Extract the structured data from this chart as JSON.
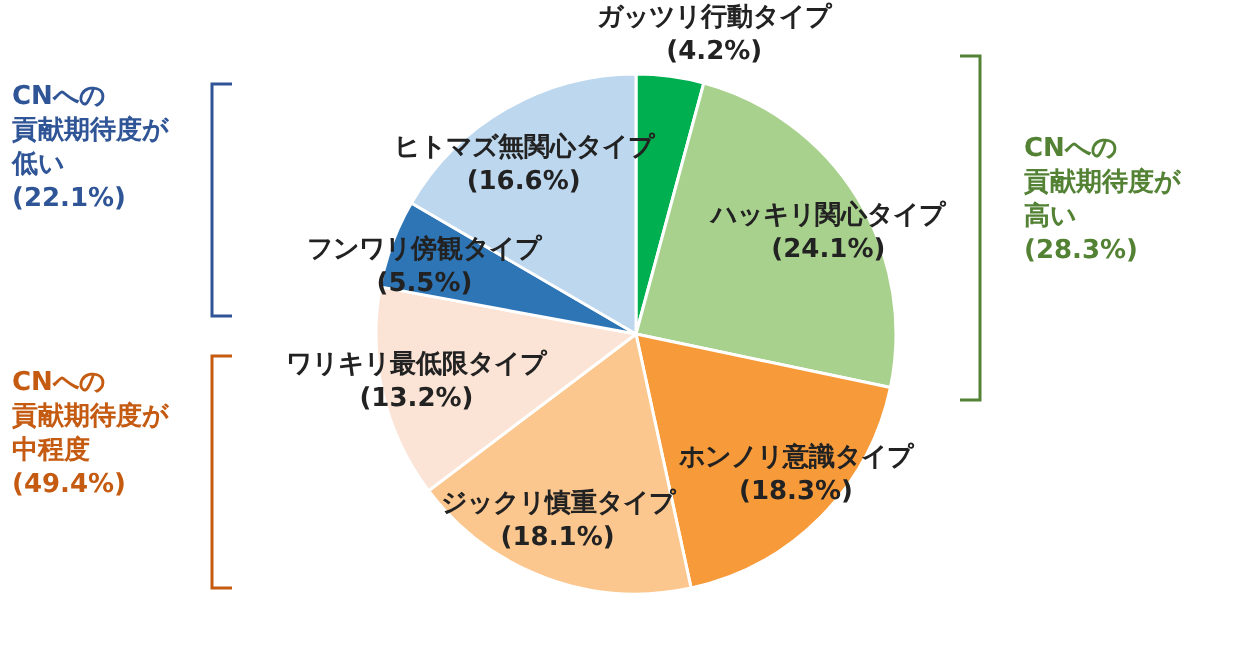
{
  "chart_data": {
    "type": "pie",
    "categories": [
      "ガッツリ行動タイプ",
      "ハッキリ関心タイプ",
      "ホンノリ意識タイプ",
      "ジックリ慎重タイプ",
      "ワリキリ最低限タイプ",
      "フンワリ傍観タイプ",
      "ヒトマズ無関心タイプ"
    ],
    "values": [
      4.2,
      24.1,
      18.3,
      18.1,
      13.2,
      5.5,
      16.6
    ],
    "value_labels": [
      "(4.2%)",
      "(24.1%)",
      "(18.3%)",
      "(18.1%)",
      "(13.2%)",
      "(5.5%)",
      "(16.6%)"
    ],
    "colors": [
      "#00b050",
      "#a9d18e",
      "#f79a3a",
      "#fbc78f",
      "#fbe3d5",
      "#2e75b6",
      "#bdd7ee"
    ],
    "annotations": [
      "CNへの",
      "貢献期待度が",
      "高い",
      "(28.3%)",
      "CNへの",
      "貢献期待度が",
      "低い",
      "(22.1%)",
      "CNへの",
      "貢献期待度が",
      "中程度",
      "(49.4%)"
    ]
  }
}
